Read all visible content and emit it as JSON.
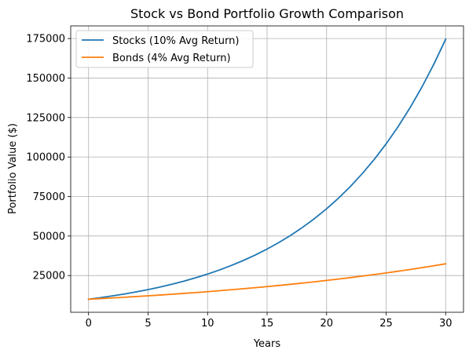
{
  "chart_data": {
    "type": "line",
    "title": "Stock vs Bond Portfolio Growth Comparison",
    "xlabel": "Years",
    "ylabel": "Portfolio Value ($)",
    "xlim": [
      -1.5,
      31.5
    ],
    "ylim": [
      1750,
      183000
    ],
    "xticks": [
      0,
      5,
      10,
      15,
      20,
      25,
      30
    ],
    "yticks": [
      25000,
      50000,
      75000,
      100000,
      125000,
      150000,
      175000
    ],
    "x_tick_labels": [
      "0",
      "5",
      "10",
      "15",
      "20",
      "25",
      "30"
    ],
    "y_tick_labels": [
      "25000",
      "50000",
      "75000",
      "100000",
      "125000",
      "150000",
      "175000"
    ],
    "grid": true,
    "legend_position": "top-left",
    "x": [
      0,
      1,
      2,
      3,
      4,
      5,
      6,
      7,
      8,
      9,
      10,
      11,
      12,
      13,
      14,
      15,
      16,
      17,
      18,
      19,
      20,
      21,
      22,
      23,
      24,
      25,
      26,
      27,
      28,
      29,
      30
    ],
    "series": [
      {
        "name": "Stocks (10% Avg Return)",
        "color": "#1f77b4",
        "values": [
          10000,
          11000,
          12100,
          13310,
          14641,
          16105,
          17716,
          19487,
          21436,
          23579,
          25937,
          28531,
          31384,
          34523,
          37975,
          41772,
          45950,
          50545,
          55599,
          61159,
          67275,
          74002,
          81403,
          89543,
          98497,
          108347,
          119182,
          131100,
          144210,
          158631,
          174494
        ]
      },
      {
        "name": "Bonds (4% Avg Return)",
        "color": "#ff7f0e",
        "values": [
          10000,
          10400,
          10816,
          11249,
          11699,
          12167,
          12653,
          13159,
          13686,
          14233,
          14802,
          15395,
          16010,
          16651,
          17317,
          18009,
          18730,
          19479,
          20258,
          21068,
          21911,
          22788,
          23699,
          24647,
          25633,
          26658,
          27725,
          28834,
          29987,
          31187,
          32434
        ]
      }
    ]
  }
}
